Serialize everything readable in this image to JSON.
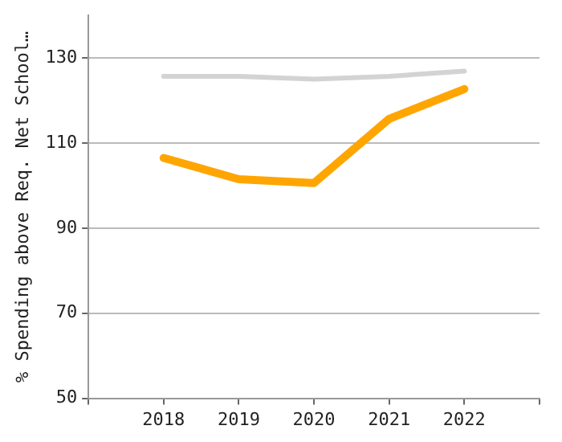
{
  "chart_data": {
    "type": "line",
    "ylabel": "% Spending above Req. Net School…",
    "x": [
      2018,
      2019,
      2020,
      2021,
      2022
    ],
    "xlim": [
      2017,
      2023
    ],
    "xticks": [
      {
        "value": 2017,
        "label": null
      },
      2018,
      2019,
      2020,
      2021,
      2022,
      {
        "value": 2023,
        "label": null
      }
    ],
    "ylim": [
      50,
      140
    ],
    "yticks": [
      50,
      70,
      90,
      110,
      130
    ],
    "grid": "y",
    "legend": false,
    "marker": "none",
    "line_style": "solid",
    "series": [
      {
        "color": "#d3d3d3",
        "values": [
          125.7,
          125.7,
          125,
          125.7,
          126.9
        ]
      },
      {
        "color": "#ffa500",
        "values": [
          106.5,
          101.5,
          100.6,
          115.7,
          122.7
        ]
      }
    ]
  }
}
